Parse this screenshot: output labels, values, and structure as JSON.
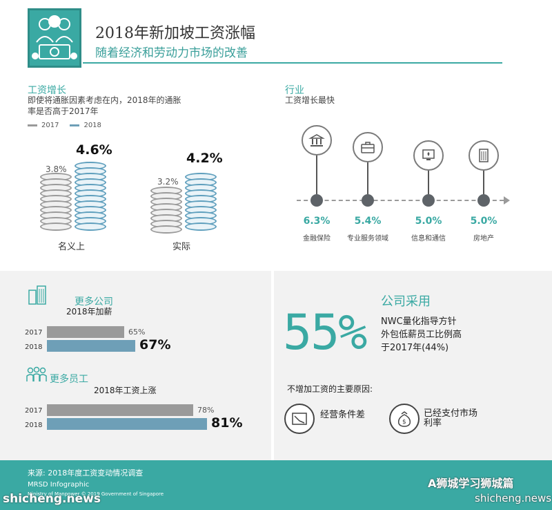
{
  "header": {
    "title": "2018年新加坡工资涨幅",
    "subtitle": "随着经济和劳动力市场的改善"
  },
  "wage_growth": {
    "label": "工资增长",
    "desc_line1": "即使将通胀因素考虑在内，2018年的通胀",
    "desc_line2": "率是否高于2017年",
    "legend_2017": "2017",
    "legend_2018": "2018",
    "nominal": {
      "label": "名义上",
      "v2017": "3.8%",
      "v2018": "4.6%"
    },
    "real": {
      "label": "实际",
      "v2017": "3.2%",
      "v2018": "4.2%"
    }
  },
  "industry": {
    "label": "行业",
    "sub": "工资增长最快",
    "items": [
      {
        "pct": "6.3%",
        "name": "金融保险"
      },
      {
        "pct": "5.4%",
        "name": "专业服务领域"
      },
      {
        "pct": "5.0%",
        "name": "信息和通信"
      },
      {
        "pct": "5.0%",
        "name": "房地产"
      }
    ]
  },
  "more_companies": {
    "label": "更多公司",
    "sub": "2018年加薪",
    "rows": [
      {
        "year": "2017",
        "value": "65%"
      },
      {
        "year": "2018",
        "value": "67%"
      }
    ]
  },
  "more_employees": {
    "label": "更多员工",
    "sub": "2018年工资上涨",
    "rows": [
      {
        "year": "2017",
        "value": "78%"
      },
      {
        "year": "2018",
        "value": "81%"
      }
    ]
  },
  "company_adoption": {
    "label": "公司采用",
    "big": "55%",
    "line1": "NWC量化指导方针",
    "line2": "外包低薪员工比例高",
    "line3": "于2017年(44%)"
  },
  "reasons": {
    "title": "不增加工资的主要原因:",
    "items": [
      "经营条件差",
      "已经支付市场",
      "利率"
    ]
  },
  "footer": {
    "source": "来源: 2018年度工资变动情况调查",
    "mrsd": "MRSD Infographic",
    "ministry": "Ministry of Manpower © 2019 Government of Singapore"
  },
  "watermark": {
    "left": "shicheng.news",
    "right_badge": "A狮城学习狮城篇",
    "right": "shicheng.news"
  },
  "colors": {
    "teal": "#3aa9a3",
    "blue_bar": "#6e9fb7",
    "grey_bar": "#9a9a9a",
    "panel": "#f2f2f2"
  }
}
